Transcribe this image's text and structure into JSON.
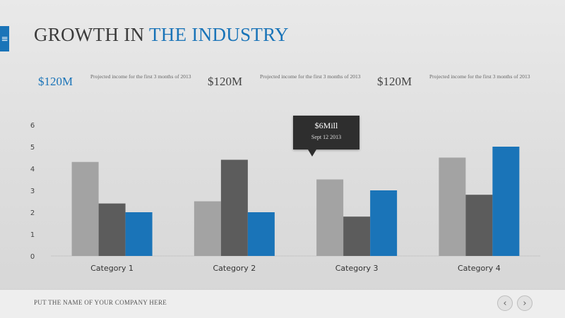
{
  "slide": {
    "title_prefix": "GROWTH IN ",
    "title_highlight": "THE INDUSTRY",
    "menu_icon": "hamburger-icon",
    "accent_color": "#1a74b8"
  },
  "stats": [
    {
      "value": "$120M",
      "description": "Projected income for the first 3 months of 2013",
      "accent": true
    },
    {
      "value": "$120M",
      "description": "Projected income for the first 3 months of 2013",
      "accent": false
    },
    {
      "value": "$120M",
      "description": "Projected income for the first 3 months of 2013",
      "accent": false
    }
  ],
  "tooltip": {
    "value": "$6Mill",
    "date": "Sept 12 2013"
  },
  "footer": {
    "company": "PUT THE NAME OF YOUR COMPANY HERE",
    "prev_icon": "chevron-left-icon",
    "next_icon": "chevron-right-icon"
  },
  "chart_data": {
    "type": "bar",
    "categories": [
      "Category 1",
      "Category 2",
      "Category 3",
      "Category 4"
    ],
    "series": [
      {
        "values": [
          4.3,
          2.5,
          3.5,
          4.5
        ],
        "color": "#a3a3a3"
      },
      {
        "values": [
          2.4,
          4.4,
          1.8,
          2.8
        ],
        "color": "#5c5c5c"
      },
      {
        "values": [
          2.0,
          2.0,
          3.0,
          5.0
        ],
        "color": "#1a74b8"
      }
    ],
    "ylim": [
      0,
      6
    ],
    "yticks": [
      0,
      1,
      2,
      3,
      4,
      5,
      6
    ],
    "grid": false,
    "legend": "none"
  }
}
